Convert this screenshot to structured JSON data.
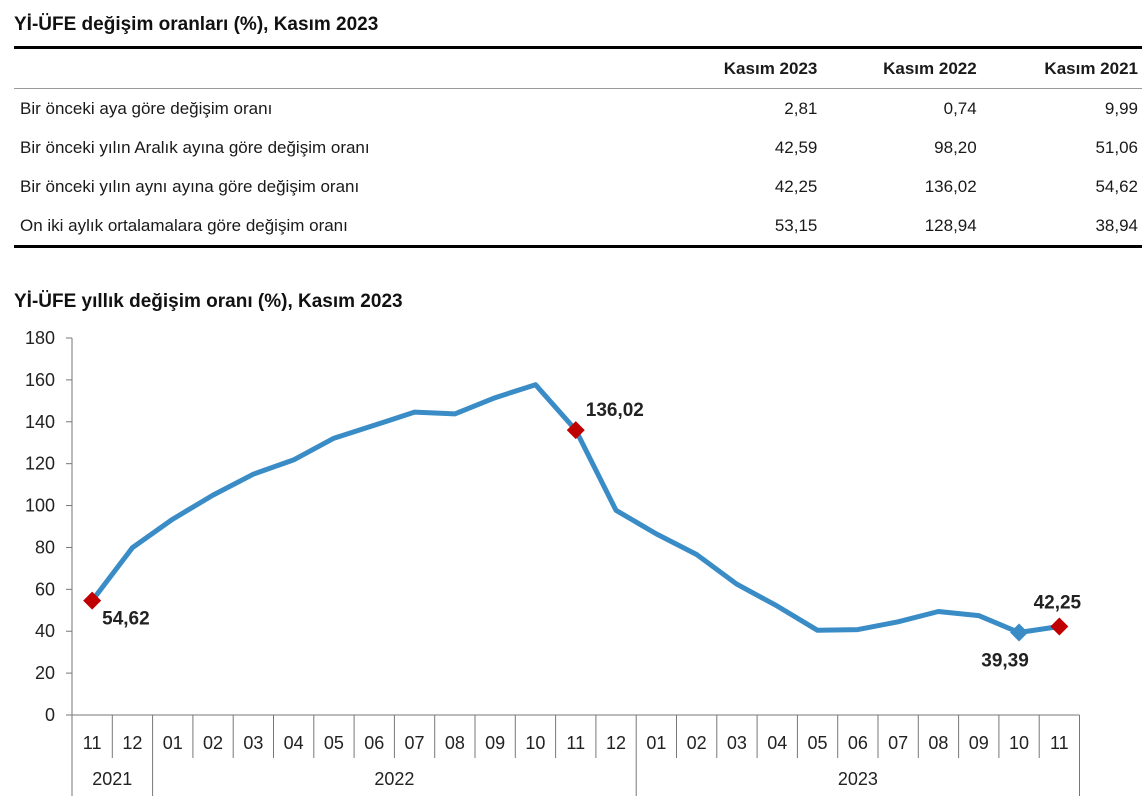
{
  "table": {
    "title": "Yİ-ÜFE değişim oranları (%), Kasım 2023",
    "columns": [
      "",
      "Kasım 2023",
      "Kasım 2022",
      "Kasım 2021"
    ],
    "rows": [
      {
        "label": "Bir önceki aya göre değişim oranı",
        "values": [
          "2,81",
          "0,74",
          "9,99"
        ]
      },
      {
        "label": "Bir önceki yılın Aralık ayına göre değişim oranı",
        "values": [
          "42,59",
          "98,20",
          "51,06"
        ]
      },
      {
        "label": "Bir önceki yılın aynı ayına göre değişim oranı",
        "values": [
          "42,25",
          "136,02",
          "54,62"
        ]
      },
      {
        "label": "On iki aylık ortalamalara göre değişim oranı",
        "values": [
          "53,15",
          "128,94",
          "38,94"
        ]
      }
    ]
  },
  "chart_data": {
    "type": "line",
    "title": "Yİ-ÜFE yıllık değişim oranı (%), Kasım 2023",
    "xlabel": "",
    "ylabel": "",
    "ylim": [
      0,
      180
    ],
    "yticks": [
      "0",
      "20",
      "40",
      "60",
      "80",
      "100",
      "120",
      "140",
      "160",
      "180"
    ],
    "categories": [
      "11",
      "12",
      "01",
      "02",
      "03",
      "04",
      "05",
      "06",
      "07",
      "08",
      "09",
      "10",
      "11",
      "12",
      "01",
      "02",
      "03",
      "04",
      "05",
      "06",
      "07",
      "08",
      "09",
      "10",
      "11"
    ],
    "year_groups": [
      {
        "label": "2021",
        "count": 2
      },
      {
        "label": "2022",
        "count": 12
      },
      {
        "label": "2023",
        "count": 11
      }
    ],
    "series": [
      {
        "name": "",
        "color": "#3a8cc6",
        "values": [
          54.62,
          79.89,
          93.53,
          105.01,
          114.97,
          121.82,
          132.16,
          138.31,
          144.61,
          143.75,
          151.5,
          157.69,
          136.02,
          97.72,
          86.46,
          76.61,
          62.43,
          52.0,
          40.42,
          40.76,
          44.5,
          49.41,
          47.44,
          39.39,
          42.25
        ]
      }
    ],
    "annotations": [
      {
        "index": 0,
        "label": "54,62",
        "marker": "#c00000"
      },
      {
        "index": 12,
        "label": "136,02",
        "marker": "#c00000"
      },
      {
        "index": 23,
        "label": "39,39",
        "marker": "#3a8cc6"
      },
      {
        "index": 24,
        "label": "42,25",
        "marker": "#c00000"
      }
    ],
    "grid": false,
    "legend": "none"
  }
}
